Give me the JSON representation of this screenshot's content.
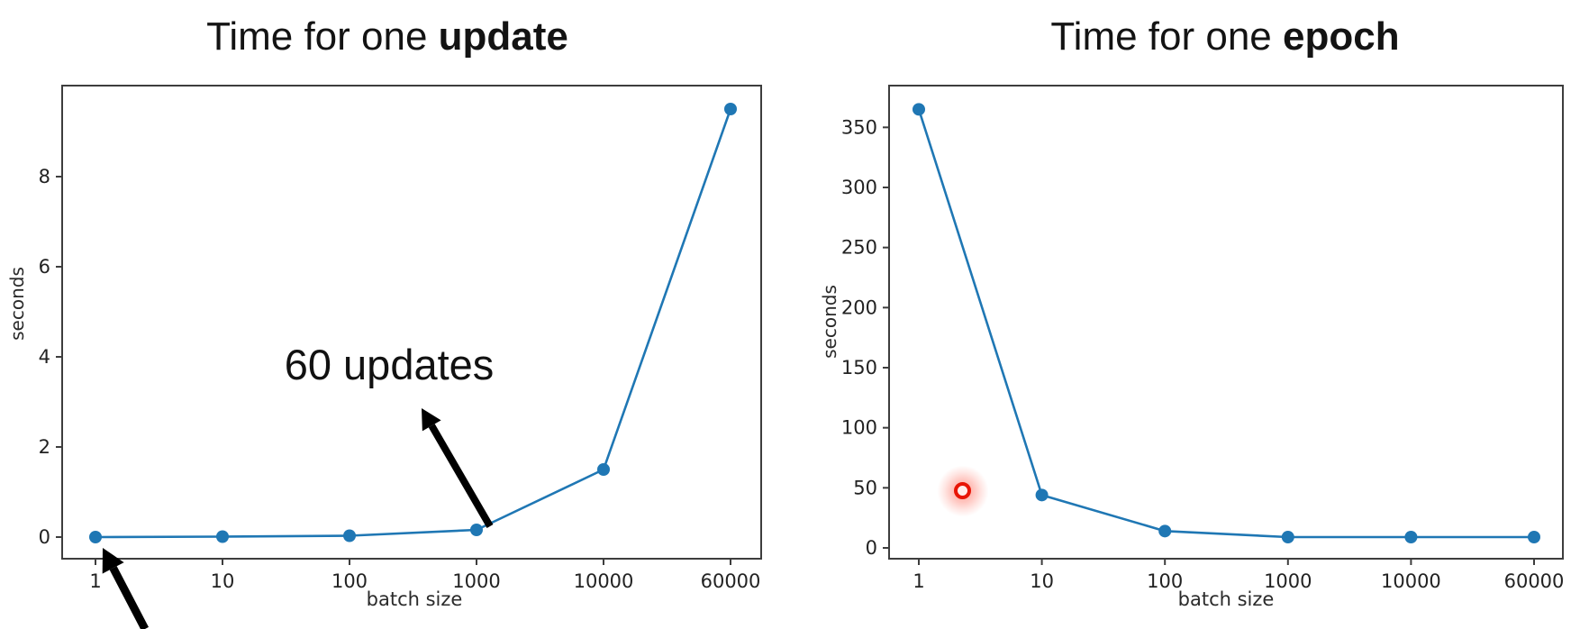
{
  "chart_data": [
    {
      "type": "line",
      "title_prefix": "Time for one ",
      "title_emph": "update",
      "xlabel": "batch size",
      "ylabel": "seconds",
      "x_tick_labels": [
        "1",
        "10",
        "100",
        "1000",
        "10000",
        "60000"
      ],
      "x": [
        1,
        10,
        100,
        1000,
        10000,
        60000
      ],
      "y_seconds": [
        0.0,
        0.01,
        0.03,
        0.16,
        1.5,
        9.5
      ],
      "y_ticks": [
        0,
        2,
        4,
        6,
        8
      ],
      "ylim": [
        -0.5,
        10.0
      ],
      "x_scale": "log-style, six evenly spaced ticks",
      "grid": "off",
      "line_color": "#1f77b4",
      "marker": "circle",
      "annotations": [
        {
          "kind": "label-with-arrow",
          "text": "60 updates",
          "arrow_points_from": "batch size 1000 data point",
          "arrow_color": "#000000"
        },
        {
          "kind": "arrow-offscreen",
          "text": "",
          "arrow_points_to": "batch size 1 data point, tail runs off bottom edge",
          "arrow_color": "#000000"
        }
      ]
    },
    {
      "type": "line",
      "title_prefix": "Time for one ",
      "title_emph": "epoch",
      "xlabel": "batch size",
      "ylabel": "seconds",
      "x_tick_labels": [
        "1",
        "10",
        "100",
        "1000",
        "10000",
        "60000"
      ],
      "x": [
        1,
        10,
        100,
        1000,
        10000,
        60000
      ],
      "y_seconds": [
        365,
        44,
        14,
        9,
        9,
        9
      ],
      "y_ticks": [
        0,
        50,
        100,
        150,
        200,
        250,
        300,
        350
      ],
      "ylim": [
        -8,
        384
      ],
      "x_scale": "log-style, six evenly spaced ticks",
      "grid": "off",
      "line_color": "#1f77b4",
      "marker": "circle",
      "annotations": [
        {
          "kind": "laser-pointer-dot",
          "near_batch_size": 2.4,
          "near_y_seconds": 47,
          "color": "#e81505"
        }
      ]
    }
  ]
}
